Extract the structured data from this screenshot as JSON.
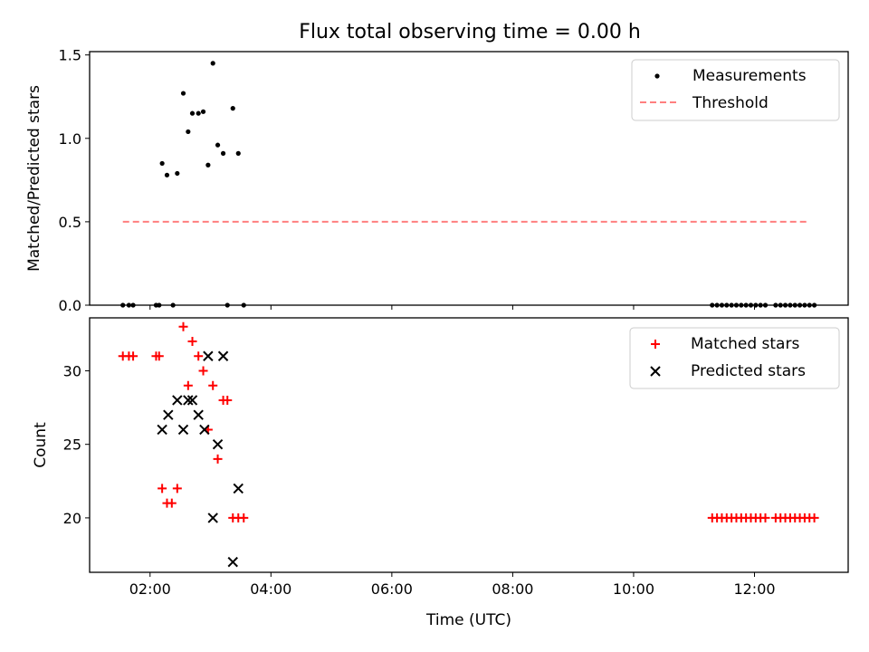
{
  "chart_data": [
    {
      "type": "scatter",
      "title": "Flux total observing time = 0.00 h",
      "xlabel": "",
      "ylabel": "Matched/Predicted stars",
      "xlim": [
        1.0,
        13.55
      ],
      "ylim": [
        0.0,
        1.52
      ],
      "x_ticks": [
        2,
        4,
        6,
        8,
        10,
        12
      ],
      "x_tick_labels": [
        "",
        "",
        "",
        "",
        "",
        ""
      ],
      "y_ticks": [
        0.0,
        0.5,
        1.0,
        1.5
      ],
      "y_tick_labels": [
        "0.0",
        "0.5",
        "1.0",
        "1.5"
      ],
      "legend_position": "top-right",
      "series": [
        {
          "name": "Measurements",
          "color": "#000000",
          "marker": "dot",
          "points": [
            [
              1.55,
              0.0
            ],
            [
              1.65,
              0.0
            ],
            [
              1.72,
              0.0
            ],
            [
              2.1,
              0.0
            ],
            [
              2.15,
              0.0
            ],
            [
              2.38,
              0.0
            ],
            [
              2.2,
              0.85
            ],
            [
              2.28,
              0.78
            ],
            [
              2.45,
              0.79
            ],
            [
              2.55,
              1.27
            ],
            [
              2.63,
              1.04
            ],
            [
              2.7,
              1.15
            ],
            [
              2.8,
              1.15
            ],
            [
              2.88,
              1.16
            ],
            [
              2.96,
              0.84
            ],
            [
              3.04,
              1.45
            ],
            [
              3.12,
              0.96
            ],
            [
              3.21,
              0.91
            ],
            [
              3.28,
              0.0
            ],
            [
              3.37,
              1.18
            ],
            [
              3.46,
              0.91
            ],
            [
              3.55,
              0.0
            ],
            [
              11.3,
              0.0
            ],
            [
              11.38,
              0.0
            ],
            [
              11.46,
              0.0
            ],
            [
              11.54,
              0.0
            ],
            [
              11.62,
              0.0
            ],
            [
              11.7,
              0.0
            ],
            [
              11.78,
              0.0
            ],
            [
              11.86,
              0.0
            ],
            [
              11.94,
              0.0
            ],
            [
              12.02,
              0.0
            ],
            [
              12.1,
              0.0
            ],
            [
              12.18,
              0.0
            ],
            [
              12.35,
              0.0
            ],
            [
              12.43,
              0.0
            ],
            [
              12.51,
              0.0
            ],
            [
              12.59,
              0.0
            ],
            [
              12.67,
              0.0
            ],
            [
              12.75,
              0.0
            ],
            [
              12.83,
              0.0
            ],
            [
              12.91,
              0.0
            ],
            [
              12.99,
              0.0
            ]
          ]
        },
        {
          "name": "Threshold",
          "color": "#ff7f7f",
          "line_style": "dashed",
          "x": [
            1.55,
            12.9
          ],
          "y": [
            0.5,
            0.5
          ]
        }
      ]
    },
    {
      "type": "scatter",
      "title": "",
      "xlabel": "Time (UTC)",
      "ylabel": "Count",
      "xlim": [
        1.0,
        13.55
      ],
      "ylim": [
        16.3,
        33.6
      ],
      "x_ticks": [
        2,
        4,
        6,
        8,
        10,
        12
      ],
      "x_tick_labels": [
        "02:00",
        "04:00",
        "06:00",
        "08:00",
        "10:00",
        "12:00"
      ],
      "y_ticks": [
        20,
        25,
        30
      ],
      "y_tick_labels": [
        "20",
        "25",
        "30"
      ],
      "legend_position": "top-right",
      "series": [
        {
          "name": "Matched stars",
          "color": "#ff0000",
          "marker": "plus",
          "points": [
            [
              1.55,
              31
            ],
            [
              1.65,
              31
            ],
            [
              1.72,
              31
            ],
            [
              2.1,
              31
            ],
            [
              2.15,
              31
            ],
            [
              2.2,
              22
            ],
            [
              2.28,
              21
            ],
            [
              2.36,
              21
            ],
            [
              2.45,
              22
            ],
            [
              2.55,
              33
            ],
            [
              2.63,
              29
            ],
            [
              2.7,
              32
            ],
            [
              2.8,
              31
            ],
            [
              2.88,
              30
            ],
            [
              2.96,
              26
            ],
            [
              3.04,
              29
            ],
            [
              3.12,
              24
            ],
            [
              3.21,
              28
            ],
            [
              3.28,
              28
            ],
            [
              3.37,
              20
            ],
            [
              3.46,
              20
            ],
            [
              3.55,
              20
            ],
            [
              11.3,
              20
            ],
            [
              11.38,
              20
            ],
            [
              11.46,
              20
            ],
            [
              11.54,
              20
            ],
            [
              11.62,
              20
            ],
            [
              11.7,
              20
            ],
            [
              11.78,
              20
            ],
            [
              11.86,
              20
            ],
            [
              11.94,
              20
            ],
            [
              12.02,
              20
            ],
            [
              12.1,
              20
            ],
            [
              12.18,
              20
            ],
            [
              12.35,
              20
            ],
            [
              12.43,
              20
            ],
            [
              12.51,
              20
            ],
            [
              12.59,
              20
            ],
            [
              12.67,
              20
            ],
            [
              12.75,
              20
            ],
            [
              12.83,
              20
            ],
            [
              12.91,
              20
            ],
            [
              12.99,
              20
            ]
          ]
        },
        {
          "name": "Predicted stars",
          "color": "#000000",
          "marker": "x",
          "points": [
            [
              2.2,
              26
            ],
            [
              2.3,
              27
            ],
            [
              2.45,
              28
            ],
            [
              2.55,
              26
            ],
            [
              2.63,
              28
            ],
            [
              2.7,
              28
            ],
            [
              2.8,
              27
            ],
            [
              2.9,
              26
            ],
            [
              2.96,
              31
            ],
            [
              3.04,
              20
            ],
            [
              3.12,
              25
            ],
            [
              3.21,
              31
            ],
            [
              3.37,
              17
            ],
            [
              3.46,
              22
            ]
          ]
        }
      ]
    }
  ]
}
